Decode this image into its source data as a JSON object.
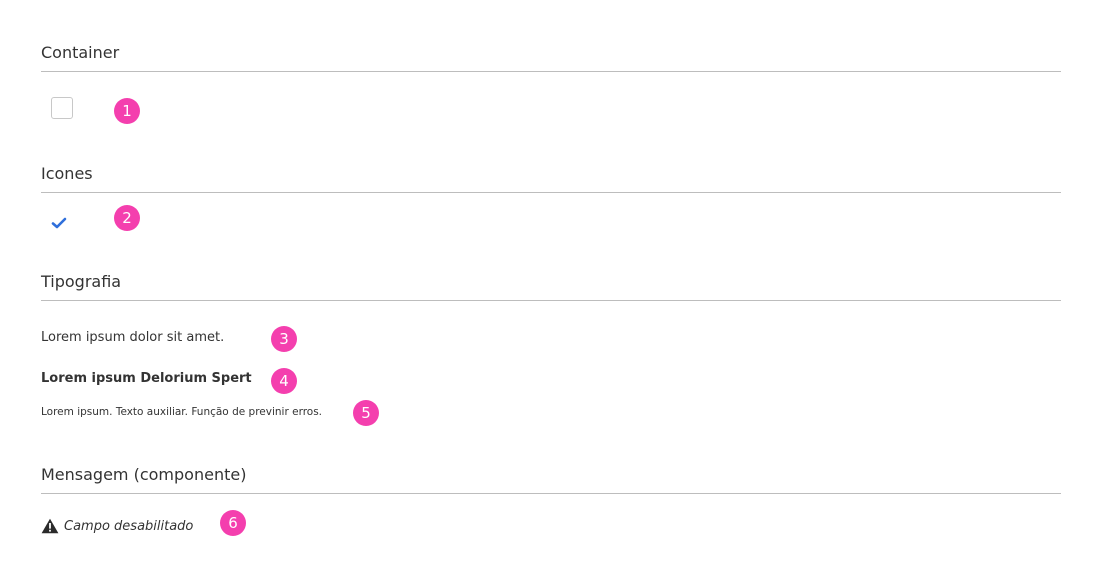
{
  "sections": {
    "container": {
      "title": "Container"
    },
    "icones": {
      "title": "Icones"
    },
    "tipografia": {
      "title": "Tipografia"
    },
    "mensagem": {
      "title": "Mensagem (componente)"
    }
  },
  "badges": [
    "1",
    "2",
    "3",
    "4",
    "5",
    "6"
  ],
  "colors": {
    "badge": "#f43fae",
    "check": "#2f6fdb",
    "text": "#333333",
    "rule": "#bdbdbd"
  },
  "icons": {
    "container": "checkbox-empty",
    "icones": "check-icon",
    "mensagem": "warning-icon"
  },
  "tipografia": {
    "regular": "Lorem ipsum dolor sit amet.",
    "bold": "Lorem ipsum Delorium Spert",
    "small": "Lorem ipsum. Texto auxiliar. Função de previnir erros."
  },
  "mensagem": {
    "text": "Campo desabilitado"
  }
}
